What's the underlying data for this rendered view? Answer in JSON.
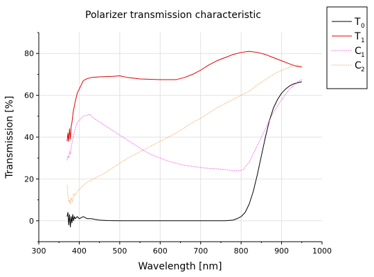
{
  "chart_data": {
    "type": "line",
    "title": "Polarizer transmission characteristic",
    "xlabel": "Wavelength [nm]",
    "ylabel": "Transmission [%]",
    "xlim": [
      300,
      1000
    ],
    "ylim": [
      -10,
      90
    ],
    "xticks": [
      300,
      400,
      500,
      600,
      700,
      800,
      900,
      1000
    ],
    "yticks": [
      0,
      20,
      40,
      60,
      80
    ],
    "grid": true,
    "legend_position": "outside-top-right",
    "series": [
      {
        "name": "T",
        "subscript": "0",
        "color": "#000000",
        "dash": "solid",
        "points": [
          [
            370,
            2
          ],
          [
            372,
            4
          ],
          [
            374,
            -2
          ],
          [
            376,
            3
          ],
          [
            378,
            -3
          ],
          [
            380,
            2
          ],
          [
            382,
            -1
          ],
          [
            384,
            3
          ],
          [
            386,
            0
          ],
          [
            388,
            2
          ],
          [
            390,
            1
          ],
          [
            395,
            2
          ],
          [
            400,
            1
          ],
          [
            410,
            2
          ],
          [
            420,
            1
          ],
          [
            430,
            1
          ],
          [
            440,
            0.6
          ],
          [
            450,
            0.3
          ],
          [
            470,
            0.1
          ],
          [
            500,
            0
          ],
          [
            600,
            0
          ],
          [
            700,
            0
          ],
          [
            760,
            0
          ],
          [
            780,
            0.3
          ],
          [
            790,
            1
          ],
          [
            800,
            2
          ],
          [
            810,
            4
          ],
          [
            820,
            8
          ],
          [
            830,
            14
          ],
          [
            840,
            22
          ],
          [
            850,
            31
          ],
          [
            860,
            40
          ],
          [
            870,
            48
          ],
          [
            880,
            54
          ],
          [
            890,
            58
          ],
          [
            900,
            61
          ],
          [
            910,
            63
          ],
          [
            920,
            64.5
          ],
          [
            930,
            65.5
          ],
          [
            940,
            66
          ],
          [
            950,
            66.5
          ]
        ]
      },
      {
        "name": "T",
        "subscript": "1",
        "color": "#e00000",
        "dash": "solid",
        "points": [
          [
            370,
            38
          ],
          [
            372,
            42
          ],
          [
            374,
            38
          ],
          [
            376,
            44
          ],
          [
            378,
            39
          ],
          [
            380,
            45
          ],
          [
            382,
            47
          ],
          [
            385,
            52
          ],
          [
            390,
            57
          ],
          [
            395,
            61
          ],
          [
            400,
            63
          ],
          [
            405,
            65
          ],
          [
            410,
            67
          ],
          [
            415,
            67.5
          ],
          [
            420,
            68
          ],
          [
            430,
            68.5
          ],
          [
            450,
            68.8
          ],
          [
            480,
            69
          ],
          [
            500,
            69.3
          ],
          [
            520,
            68.5
          ],
          [
            550,
            67.8
          ],
          [
            600,
            67.5
          ],
          [
            640,
            67.5
          ],
          [
            660,
            68.5
          ],
          [
            680,
            70
          ],
          [
            700,
            72
          ],
          [
            720,
            74.5
          ],
          [
            740,
            76.5
          ],
          [
            760,
            78
          ],
          [
            780,
            79.5
          ],
          [
            800,
            80.5
          ],
          [
            820,
            81
          ],
          [
            840,
            80.5
          ],
          [
            860,
            79.5
          ],
          [
            880,
            78
          ],
          [
            900,
            76.5
          ],
          [
            920,
            75
          ],
          [
            935,
            74
          ],
          [
            950,
            73.5
          ]
        ]
      },
      {
        "name": "C",
        "subscript": "1",
        "color": "#ee44ee",
        "dash": "dotted",
        "points": [
          [
            370,
            29
          ],
          [
            372,
            31
          ],
          [
            374,
            30
          ],
          [
            376,
            33
          ],
          [
            378,
            32
          ],
          [
            380,
            35
          ],
          [
            385,
            40
          ],
          [
            390,
            44
          ],
          [
            395,
            47
          ],
          [
            400,
            48
          ],
          [
            410,
            50
          ],
          [
            420,
            50.5
          ],
          [
            425,
            51
          ],
          [
            430,
            50
          ],
          [
            440,
            48.5
          ],
          [
            460,
            46
          ],
          [
            480,
            43.5
          ],
          [
            500,
            41
          ],
          [
            520,
            38.5
          ],
          [
            540,
            36
          ],
          [
            560,
            33.5
          ],
          [
            580,
            31.5
          ],
          [
            600,
            30
          ],
          [
            620,
            28.5
          ],
          [
            640,
            27.5
          ],
          [
            660,
            26.5
          ],
          [
            680,
            26
          ],
          [
            700,
            25.5
          ],
          [
            720,
            25
          ],
          [
            740,
            24.8
          ],
          [
            760,
            24.5
          ],
          [
            780,
            24
          ],
          [
            795,
            23.8
          ],
          [
            805,
            24.5
          ],
          [
            820,
            28
          ],
          [
            840,
            36
          ],
          [
            860,
            44
          ],
          [
            880,
            52
          ],
          [
            900,
            58
          ],
          [
            920,
            63
          ],
          [
            940,
            66.5
          ],
          [
            950,
            67.5
          ]
        ]
      },
      {
        "name": "C",
        "subscript": "2",
        "color": "#f0a050",
        "dash": "dotted",
        "points": [
          [
            370,
            17
          ],
          [
            372,
            12
          ],
          [
            374,
            9
          ],
          [
            376,
            10
          ],
          [
            378,
            8
          ],
          [
            380,
            11
          ],
          [
            383,
            9
          ],
          [
            386,
            13
          ],
          [
            390,
            12
          ],
          [
            395,
            14
          ],
          [
            400,
            15
          ],
          [
            410,
            17
          ],
          [
            420,
            18.5
          ],
          [
            440,
            20.5
          ],
          [
            460,
            22.5
          ],
          [
            480,
            25
          ],
          [
            500,
            27.5
          ],
          [
            520,
            30
          ],
          [
            540,
            32
          ],
          [
            560,
            34
          ],
          [
            580,
            36
          ],
          [
            600,
            38
          ],
          [
            620,
            40
          ],
          [
            640,
            42
          ],
          [
            660,
            44.5
          ],
          [
            680,
            47
          ],
          [
            700,
            49
          ],
          [
            720,
            51.5
          ],
          [
            740,
            54
          ],
          [
            760,
            56
          ],
          [
            780,
            58
          ],
          [
            800,
            60
          ],
          [
            820,
            62
          ],
          [
            840,
            65
          ],
          [
            860,
            67.5
          ],
          [
            880,
            70
          ],
          [
            900,
            72
          ],
          [
            920,
            73.5
          ],
          [
            940,
            74.5
          ],
          [
            950,
            74
          ]
        ]
      }
    ]
  }
}
